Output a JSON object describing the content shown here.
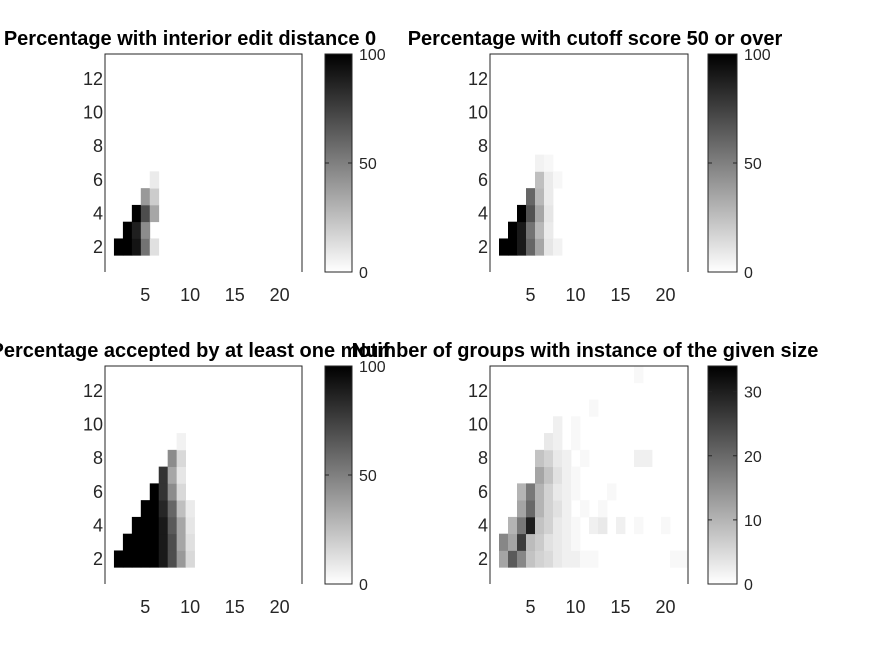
{
  "chart_data": [
    {
      "type": "heatmap",
      "title": "Percentage with interior edit distance 0",
      "xticks": [
        5,
        10,
        15,
        20
      ],
      "yticks": [
        2,
        4,
        6,
        8,
        10,
        12
      ],
      "xlim": [
        0.5,
        22.5
      ],
      "ylim": [
        0.5,
        13.5
      ],
      "clim": [
        0,
        100
      ],
      "colorbar_ticks": [
        0,
        50,
        100
      ],
      "colormap": "white-to-black",
      "cells": [
        [
          2,
          2,
          100
        ],
        [
          3,
          2,
          100
        ],
        [
          4,
          2,
          92
        ],
        [
          5,
          2,
          55
        ],
        [
          6,
          2,
          12
        ],
        [
          3,
          3,
          100
        ],
        [
          4,
          3,
          88
        ],
        [
          5,
          3,
          45
        ],
        [
          4,
          4,
          100
        ],
        [
          5,
          4,
          70
        ],
        [
          6,
          4,
          35
        ],
        [
          5,
          5,
          40
        ],
        [
          6,
          5,
          20
        ],
        [
          6,
          6,
          8
        ]
      ]
    },
    {
      "type": "heatmap",
      "title": "Percentage with cutoff score 50 or over",
      "xticks": [
        5,
        10,
        15,
        20
      ],
      "yticks": [
        2,
        4,
        6,
        8,
        10,
        12
      ],
      "xlim": [
        0.5,
        22.5
      ],
      "ylim": [
        0.5,
        13.5
      ],
      "clim": [
        0,
        100
      ],
      "colorbar_ticks": [
        0,
        50,
        100
      ],
      "colormap": "white-to-black",
      "cells": [
        [
          2,
          2,
          100
        ],
        [
          3,
          2,
          100
        ],
        [
          4,
          2,
          90
        ],
        [
          5,
          2,
          60
        ],
        [
          6,
          2,
          35
        ],
        [
          7,
          2,
          10
        ],
        [
          8,
          2,
          5
        ],
        [
          3,
          3,
          100
        ],
        [
          4,
          3,
          90
        ],
        [
          5,
          3,
          55
        ],
        [
          6,
          3,
          28
        ],
        [
          7,
          3,
          8
        ],
        [
          4,
          4,
          100
        ],
        [
          5,
          4,
          68
        ],
        [
          6,
          4,
          35
        ],
        [
          7,
          4,
          10
        ],
        [
          5,
          5,
          60
        ],
        [
          6,
          5,
          28
        ],
        [
          7,
          5,
          8
        ],
        [
          6,
          6,
          25
        ],
        [
          7,
          6,
          8
        ],
        [
          8,
          6,
          3
        ],
        [
          6,
          7,
          5
        ],
        [
          7,
          7,
          3
        ]
      ]
    },
    {
      "type": "heatmap",
      "title": "Percentage accepted by at least one motif",
      "xticks": [
        5,
        10,
        15,
        20
      ],
      "yticks": [
        2,
        4,
        6,
        8,
        10,
        12
      ],
      "xlim": [
        0.5,
        22.5
      ],
      "ylim": [
        0.5,
        13.5
      ],
      "clim": [
        0,
        100
      ],
      "colorbar_ticks": [
        0,
        50,
        100
      ],
      "colormap": "white-to-black",
      "cells": [
        [
          2,
          2,
          100
        ],
        [
          3,
          2,
          100
        ],
        [
          4,
          2,
          100
        ],
        [
          5,
          2,
          100
        ],
        [
          6,
          2,
          100
        ],
        [
          7,
          2,
          90
        ],
        [
          8,
          2,
          70
        ],
        [
          9,
          2,
          40
        ],
        [
          10,
          2,
          15
        ],
        [
          3,
          3,
          100
        ],
        [
          4,
          3,
          100
        ],
        [
          5,
          3,
          100
        ],
        [
          6,
          3,
          100
        ],
        [
          7,
          3,
          90
        ],
        [
          8,
          3,
          70
        ],
        [
          9,
          3,
          35
        ],
        [
          10,
          3,
          12
        ],
        [
          4,
          4,
          100
        ],
        [
          5,
          4,
          100
        ],
        [
          6,
          4,
          100
        ],
        [
          7,
          4,
          90
        ],
        [
          8,
          4,
          65
        ],
        [
          9,
          4,
          35
        ],
        [
          10,
          4,
          10
        ],
        [
          5,
          5,
          100
        ],
        [
          6,
          5,
          100
        ],
        [
          7,
          5,
          85
        ],
        [
          8,
          5,
          60
        ],
        [
          9,
          5,
          25
        ],
        [
          10,
          5,
          8
        ],
        [
          6,
          6,
          100
        ],
        [
          7,
          6,
          80
        ],
        [
          8,
          6,
          45
        ],
        [
          9,
          6,
          15
        ],
        [
          7,
          7,
          80
        ],
        [
          8,
          7,
          35
        ],
        [
          9,
          7,
          10
        ],
        [
          8,
          8,
          45
        ],
        [
          9,
          8,
          15
        ],
        [
          9,
          9,
          5
        ]
      ]
    },
    {
      "type": "heatmap",
      "title": "Number of groups with instance of the given size",
      "xticks": [
        5,
        10,
        15,
        20
      ],
      "yticks": [
        2,
        4,
        6,
        8,
        10,
        12
      ],
      "xlim": [
        0.5,
        22.5
      ],
      "ylim": [
        0.5,
        13.5
      ],
      "clim": [
        0,
        34
      ],
      "colorbar_ticks": [
        0,
        10,
        20,
        30
      ],
      "colormap": "white-to-black",
      "cells": [
        [
          2,
          2,
          12
        ],
        [
          3,
          2,
          22
        ],
        [
          4,
          2,
          16
        ],
        [
          5,
          2,
          8
        ],
        [
          6,
          2,
          6
        ],
        [
          7,
          2,
          5
        ],
        [
          8,
          2,
          3
        ],
        [
          9,
          2,
          2
        ],
        [
          10,
          2,
          2
        ],
        [
          11,
          2,
          1
        ],
        [
          12,
          2,
          1
        ],
        [
          2,
          3,
          16
        ],
        [
          3,
          3,
          12
        ],
        [
          4,
          3,
          26
        ],
        [
          5,
          3,
          9
        ],
        [
          6,
          3,
          7
        ],
        [
          7,
          3,
          4
        ],
        [
          8,
          3,
          3
        ],
        [
          9,
          3,
          2
        ],
        [
          10,
          3,
          1
        ],
        [
          3,
          4,
          10
        ],
        [
          4,
          4,
          18
        ],
        [
          5,
          4,
          30
        ],
        [
          6,
          4,
          8
        ],
        [
          7,
          4,
          6
        ],
        [
          8,
          4,
          3
        ],
        [
          9,
          4,
          2
        ],
        [
          10,
          4,
          1
        ],
        [
          12,
          4,
          2
        ],
        [
          13,
          4,
          3
        ],
        [
          15,
          4,
          2
        ],
        [
          17,
          4,
          1
        ],
        [
          4,
          5,
          12
        ],
        [
          5,
          5,
          20
        ],
        [
          6,
          5,
          10
        ],
        [
          7,
          5,
          6
        ],
        [
          8,
          5,
          4
        ],
        [
          9,
          5,
          2
        ],
        [
          11,
          5,
          1
        ],
        [
          13,
          5,
          1
        ],
        [
          4,
          6,
          10
        ],
        [
          5,
          6,
          18
        ],
        [
          6,
          6,
          10
        ],
        [
          7,
          6,
          6
        ],
        [
          8,
          6,
          3
        ],
        [
          9,
          6,
          2
        ],
        [
          10,
          6,
          1
        ],
        [
          14,
          6,
          1
        ],
        [
          6,
          7,
          12
        ],
        [
          7,
          7,
          8
        ],
        [
          8,
          7,
          4
        ],
        [
          9,
          7,
          2
        ],
        [
          10,
          7,
          1
        ],
        [
          6,
          8,
          8
        ],
        [
          7,
          8,
          6
        ],
        [
          8,
          8,
          3
        ],
        [
          9,
          8,
          2
        ],
        [
          11,
          8,
          1
        ],
        [
          17,
          8,
          2
        ],
        [
          18,
          8,
          2
        ],
        [
          7,
          9,
          3
        ],
        [
          8,
          9,
          2
        ],
        [
          10,
          9,
          1
        ],
        [
          8,
          10,
          2
        ],
        [
          10,
          10,
          1
        ],
        [
          12,
          11,
          1
        ],
        [
          21,
          2,
          1
        ],
        [
          22,
          2,
          1
        ],
        [
          20,
          4,
          1
        ],
        [
          17,
          13,
          1
        ]
      ]
    }
  ]
}
